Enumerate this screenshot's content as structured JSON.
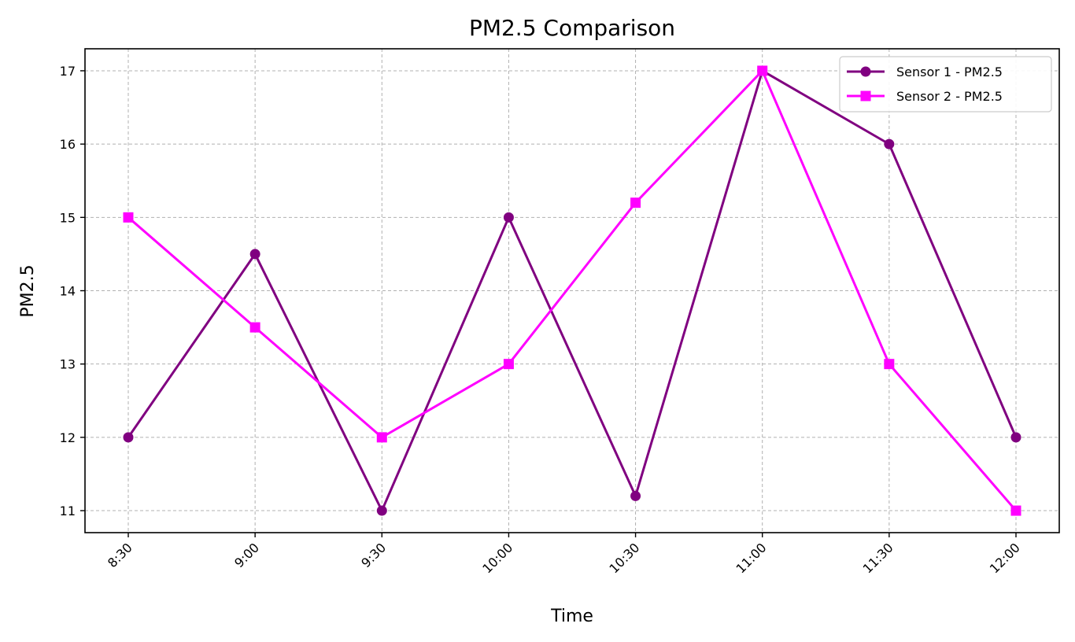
{
  "chart_data": {
    "type": "line",
    "title": "PM2.5 Comparison",
    "xlabel": "Time",
    "ylabel": "PM2.5",
    "categories": [
      "8:30",
      "9:00",
      "9:30",
      "10:00",
      "10:30",
      "11:00",
      "11:30",
      "12:00"
    ],
    "yticks": [
      11,
      12,
      13,
      14,
      15,
      16,
      17
    ],
    "ylim": [
      10.7,
      17.3
    ],
    "grid": true,
    "legend_position": "top-right",
    "series": [
      {
        "name": "Sensor 1 - PM2.5",
        "values": [
          12,
          14.5,
          11,
          15,
          11.2,
          17,
          16,
          12
        ],
        "color": "#800080",
        "marker": "circle"
      },
      {
        "name": "Sensor 2 - PM2.5",
        "values": [
          15,
          13.5,
          12,
          13,
          15.2,
          17,
          13,
          11
        ],
        "color": "#ff00ff",
        "marker": "square"
      }
    ]
  }
}
